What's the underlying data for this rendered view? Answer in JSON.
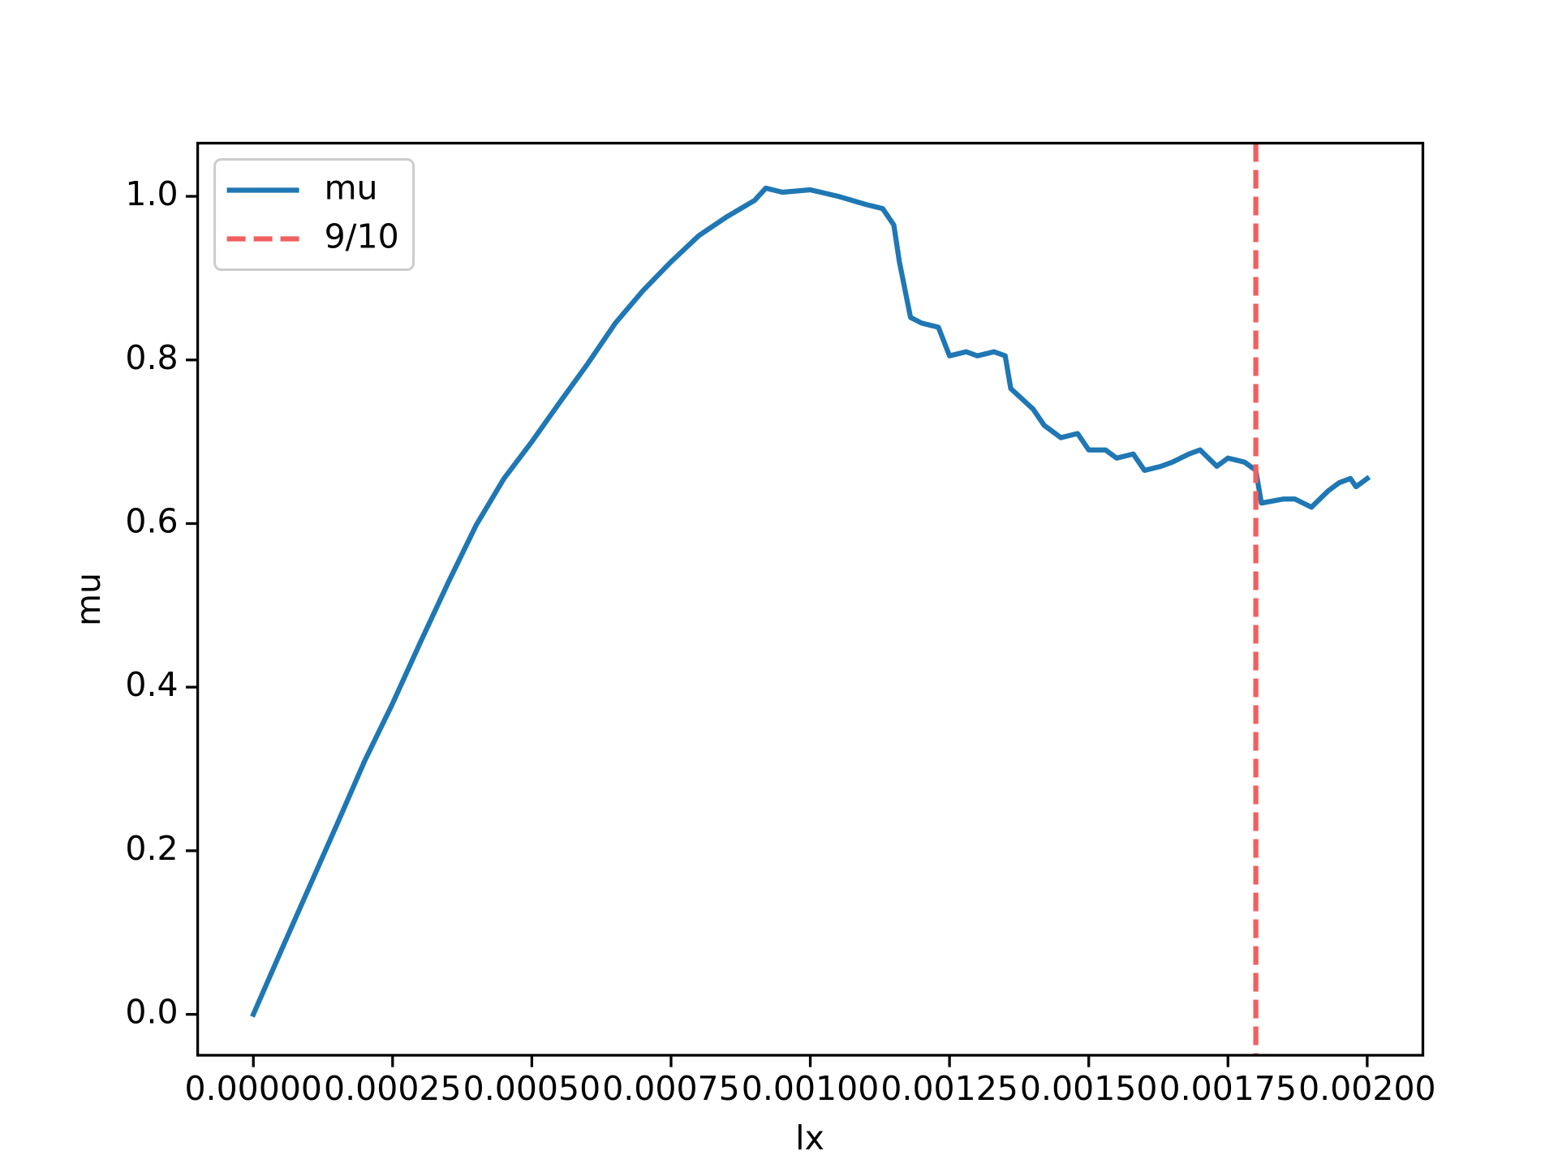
{
  "chart_data": {
    "type": "line",
    "xlabel": "lx",
    "ylabel": "mu",
    "x": [
      0,
      5e-05,
      0.0001,
      0.00015,
      0.0002,
      0.00025,
      0.0003,
      0.00035,
      0.0004,
      0.00045,
      0.0005,
      0.00055,
      0.0006,
      0.00065,
      0.0007,
      0.00075,
      0.0008,
      0.00085,
      0.0009,
      0.00092,
      0.00095,
      0.001,
      0.00105,
      0.0011,
      0.00113,
      0.00115,
      0.00116,
      0.00118,
      0.0012,
      0.00123,
      0.00125,
      0.00128,
      0.0013,
      0.00133,
      0.00135,
      0.00136,
      0.0014,
      0.00142,
      0.00145,
      0.00148,
      0.0015,
      0.00153,
      0.00155,
      0.00158,
      0.0016,
      0.00163,
      0.00165,
      0.00168,
      0.0017,
      0.00173,
      0.00175,
      0.00178,
      0.0018,
      0.00181,
      0.00185,
      0.00187,
      0.0019,
      0.00193,
      0.00195,
      0.00197,
      0.00198,
      0.002
    ],
    "series": [
      {
        "name": "mu",
        "color": "#1f77b4",
        "values": [
          0,
          0.078,
          0.155,
          0.232,
          0.31,
          0.38,
          0.455,
          0.528,
          0.598,
          0.655,
          0.7,
          0.748,
          0.795,
          0.845,
          0.885,
          0.92,
          0.952,
          0.975,
          0.995,
          1.01,
          1.005,
          1.008,
          1.0,
          0.99,
          0.985,
          0.965,
          0.92,
          0.852,
          0.845,
          0.84,
          0.805,
          0.81,
          0.805,
          0.81,
          0.805,
          0.765,
          0.74,
          0.72,
          0.705,
          0.71,
          0.69,
          0.69,
          0.68,
          0.685,
          0.665,
          0.67,
          0.675,
          0.685,
          0.69,
          0.67,
          0.68,
          0.675,
          0.665,
          0.625,
          0.63,
          0.63,
          0.62,
          0.64,
          0.65,
          0.655,
          0.645,
          0.655
        ]
      }
    ],
    "vlines": [
      {
        "x": 0.0018,
        "name": "9/10",
        "color": "#f06060"
      }
    ],
    "xlim": [
      -0.0001,
      0.0021
    ],
    "ylim": [
      -0.05,
      1.065
    ],
    "xticks": [
      {
        "value": 0,
        "label": "0.00000"
      },
      {
        "value": 0.00025,
        "label": "0.00025"
      },
      {
        "value": 0.0005,
        "label": "0.00050"
      },
      {
        "value": 0.00075,
        "label": "0.00075"
      },
      {
        "value": 0.001,
        "label": "0.00100"
      },
      {
        "value": 0.00125,
        "label": "0.00125"
      },
      {
        "value": 0.0015,
        "label": "0.00150"
      },
      {
        "value": 0.00175,
        "label": "0.00175"
      },
      {
        "value": 0.002,
        "label": "0.00200"
      }
    ],
    "yticks": [
      {
        "value": 0,
        "label": "0.0"
      },
      0.2,
      0.4,
      0.6,
      0.8,
      {
        "value": 1,
        "label": "1.0"
      }
    ],
    "legend": "upper left"
  }
}
